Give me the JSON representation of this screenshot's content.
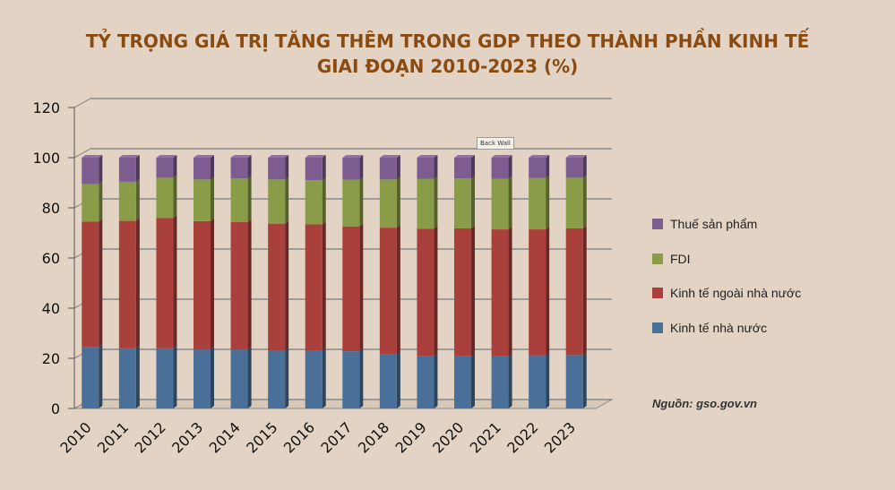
{
  "title_line1": "TỶ TRỌNG GIÁ TRỊ TĂNG THÊM TRONG GDP THEO THÀNH PHẦN KINH TẾ",
  "title_line2": "GIAI ĐOẠN 2010-2023 (%)",
  "source": "Nguồn: gso.gov.vn",
  "tooltip": "Back Wall",
  "colors": {
    "background": "#e2d3c4",
    "title": "#8a4b12",
    "state": "#4a6f98",
    "non_state": "#a9403b",
    "fdi": "#8b9c49",
    "tax": "#7d5c90"
  },
  "chart_data": {
    "type": "bar",
    "stacked": true,
    "three_d": true,
    "categories": [
      "2010",
      "2011",
      "2012",
      "2013",
      "2014",
      "2015",
      "2016",
      "2017",
      "2018",
      "2019",
      "2020",
      "2021",
      "2022",
      "2023"
    ],
    "yticks": [
      "0",
      "20",
      "40",
      "60",
      "80",
      "100",
      "120"
    ],
    "ylim": [
      0,
      120
    ],
    "grid": true,
    "legend_position": "right",
    "series": [
      {
        "name": "Kinh tế nhà nước",
        "color": "#4a6f98",
        "values": [
          24.6,
          24.0,
          24.0,
          23.5,
          23.5,
          23.2,
          23.2,
          22.8,
          21.5,
          20.8,
          20.8,
          20.8,
          21.2,
          21.3
        ]
      },
      {
        "name": "Kinh tế ngoài nhà nước",
        "color": "#a9403b",
        "values": [
          49.9,
          50.8,
          52.0,
          51.2,
          50.8,
          50.5,
          50.2,
          49.8,
          50.6,
          50.9,
          51.0,
          50.6,
          50.2,
          50.5
        ]
      },
      {
        "name": "FDI",
        "color": "#8b9c49",
        "values": [
          15.0,
          15.6,
          16.0,
          16.6,
          17.4,
          17.6,
          17.6,
          18.6,
          19.2,
          19.8,
          19.9,
          20.2,
          20.5,
          20.2
        ]
      },
      {
        "name": "Thuế sản phẩm",
        "color": "#7d5c90",
        "values": [
          10.5,
          9.6,
          8.0,
          8.7,
          8.3,
          8.7,
          9.0,
          8.8,
          8.7,
          8.5,
          8.3,
          8.4,
          8.1,
          8.0
        ]
      }
    ]
  }
}
